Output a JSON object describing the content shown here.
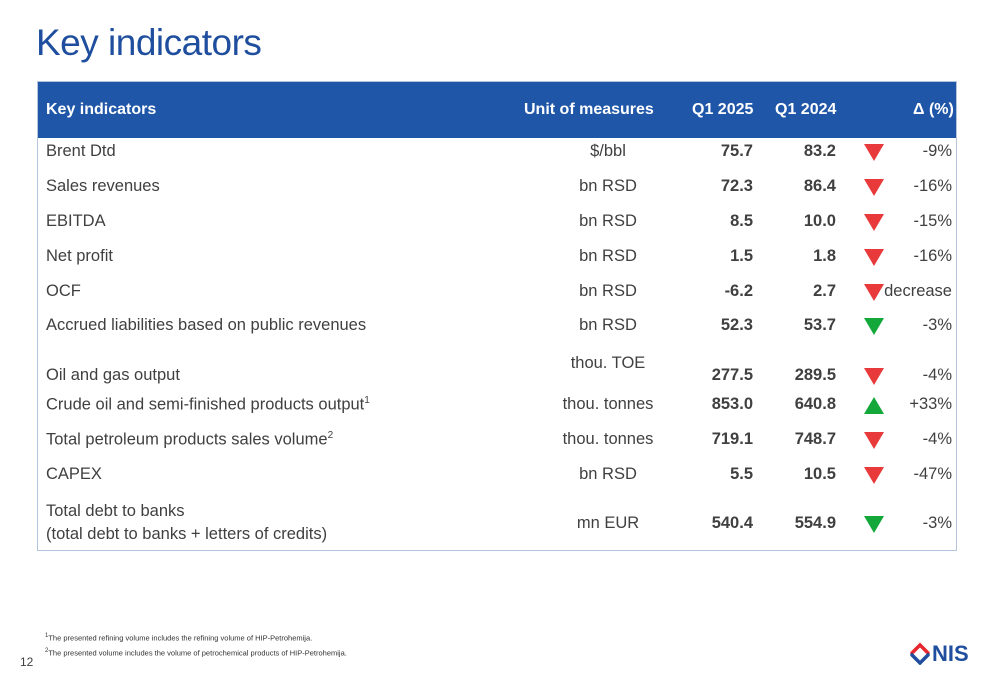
{
  "title": "Key indicators",
  "header": {
    "indicator": "Key indicators",
    "unit": "Unit of measures",
    "q1_2025": "Q1 2025",
    "q1_2024": "Q1 2024",
    "delta": "Δ (%)"
  },
  "rows": [
    {
      "name": "Brent Dtd",
      "sup": "",
      "unit": "$/bbl",
      "q1_2025": "75.7",
      "q1_2024": "83.2",
      "trend": "down-red",
      "delta": "-9%"
    },
    {
      "name": "Sales revenues",
      "sup": "",
      "unit": "bn RSD",
      "q1_2025": "72.3",
      "q1_2024": "86.4",
      "trend": "down-red",
      "delta": "-16%"
    },
    {
      "name": "EBITDA",
      "sup": "",
      "unit": "bn RSD",
      "q1_2025": "8.5",
      "q1_2024": "10.0",
      "trend": "down-red",
      "delta": "-15%"
    },
    {
      "name": "Net profit",
      "sup": "",
      "unit": "bn RSD",
      "q1_2025": "1.5",
      "q1_2024": "1.8",
      "trend": "down-red",
      "delta": "-16%"
    },
    {
      "name": "OCF",
      "sup": "",
      "unit": "bn RSD",
      "q1_2025": "-6.2",
      "q1_2024": "2.7",
      "trend": "down-red",
      "delta": "decrease"
    },
    {
      "name": "Accrued liabilities based on public revenues",
      "sup": "",
      "unit": "bn RSD",
      "q1_2025": "52.3",
      "q1_2024": "53.7",
      "trend": "down-green",
      "delta": "-3%"
    },
    {
      "name": "Oil and gas output",
      "sup": "",
      "unit": "thou. TOE",
      "q1_2025": "277.5",
      "q1_2024": "289.5",
      "trend": "down-red",
      "delta": "-4%"
    },
    {
      "name": "Crude oil and semi-finished products output",
      "sup": "1",
      "unit": "thou. tonnes",
      "q1_2025": "853.0",
      "q1_2024": "640.8",
      "trend": "up-green",
      "delta": "+33%"
    },
    {
      "name": "Total petroleum products sales volume",
      "sup": "2",
      "unit": "thou. tonnes",
      "q1_2025": "719.1",
      "q1_2024": "748.7",
      "trend": "down-red",
      "delta": "-4%"
    },
    {
      "name": "CAPEX",
      "sup": "",
      "unit": "bn RSD",
      "q1_2025": "5.5",
      "q1_2024": "10.5",
      "trend": "down-red",
      "delta": "-47%"
    },
    {
      "name": "Total debt to banks",
      "name2": "(total debt to banks + letters of credits)",
      "sup": "",
      "unit": "mn EUR",
      "q1_2025": "540.4",
      "q1_2024": "554.9",
      "trend": "down-green",
      "delta": "-3%"
    }
  ],
  "footnotes": [
    {
      "sup": "1",
      "text": "The presented refining volume includes the refining volume of HIP-Petrohemija."
    },
    {
      "sup": "2",
      "text": "The presented volume includes the volume of petrochemical products of HIP-Petrohemija."
    }
  ],
  "page_number": "12",
  "logo": {
    "text": "NIS",
    "color": "#1F4E9E",
    "accent": "#E8262D"
  },
  "colors": {
    "header_bg": "#1F56A8",
    "title": "#1F4E9E",
    "down_red": "#E83A3A",
    "green": "#14A83A"
  }
}
